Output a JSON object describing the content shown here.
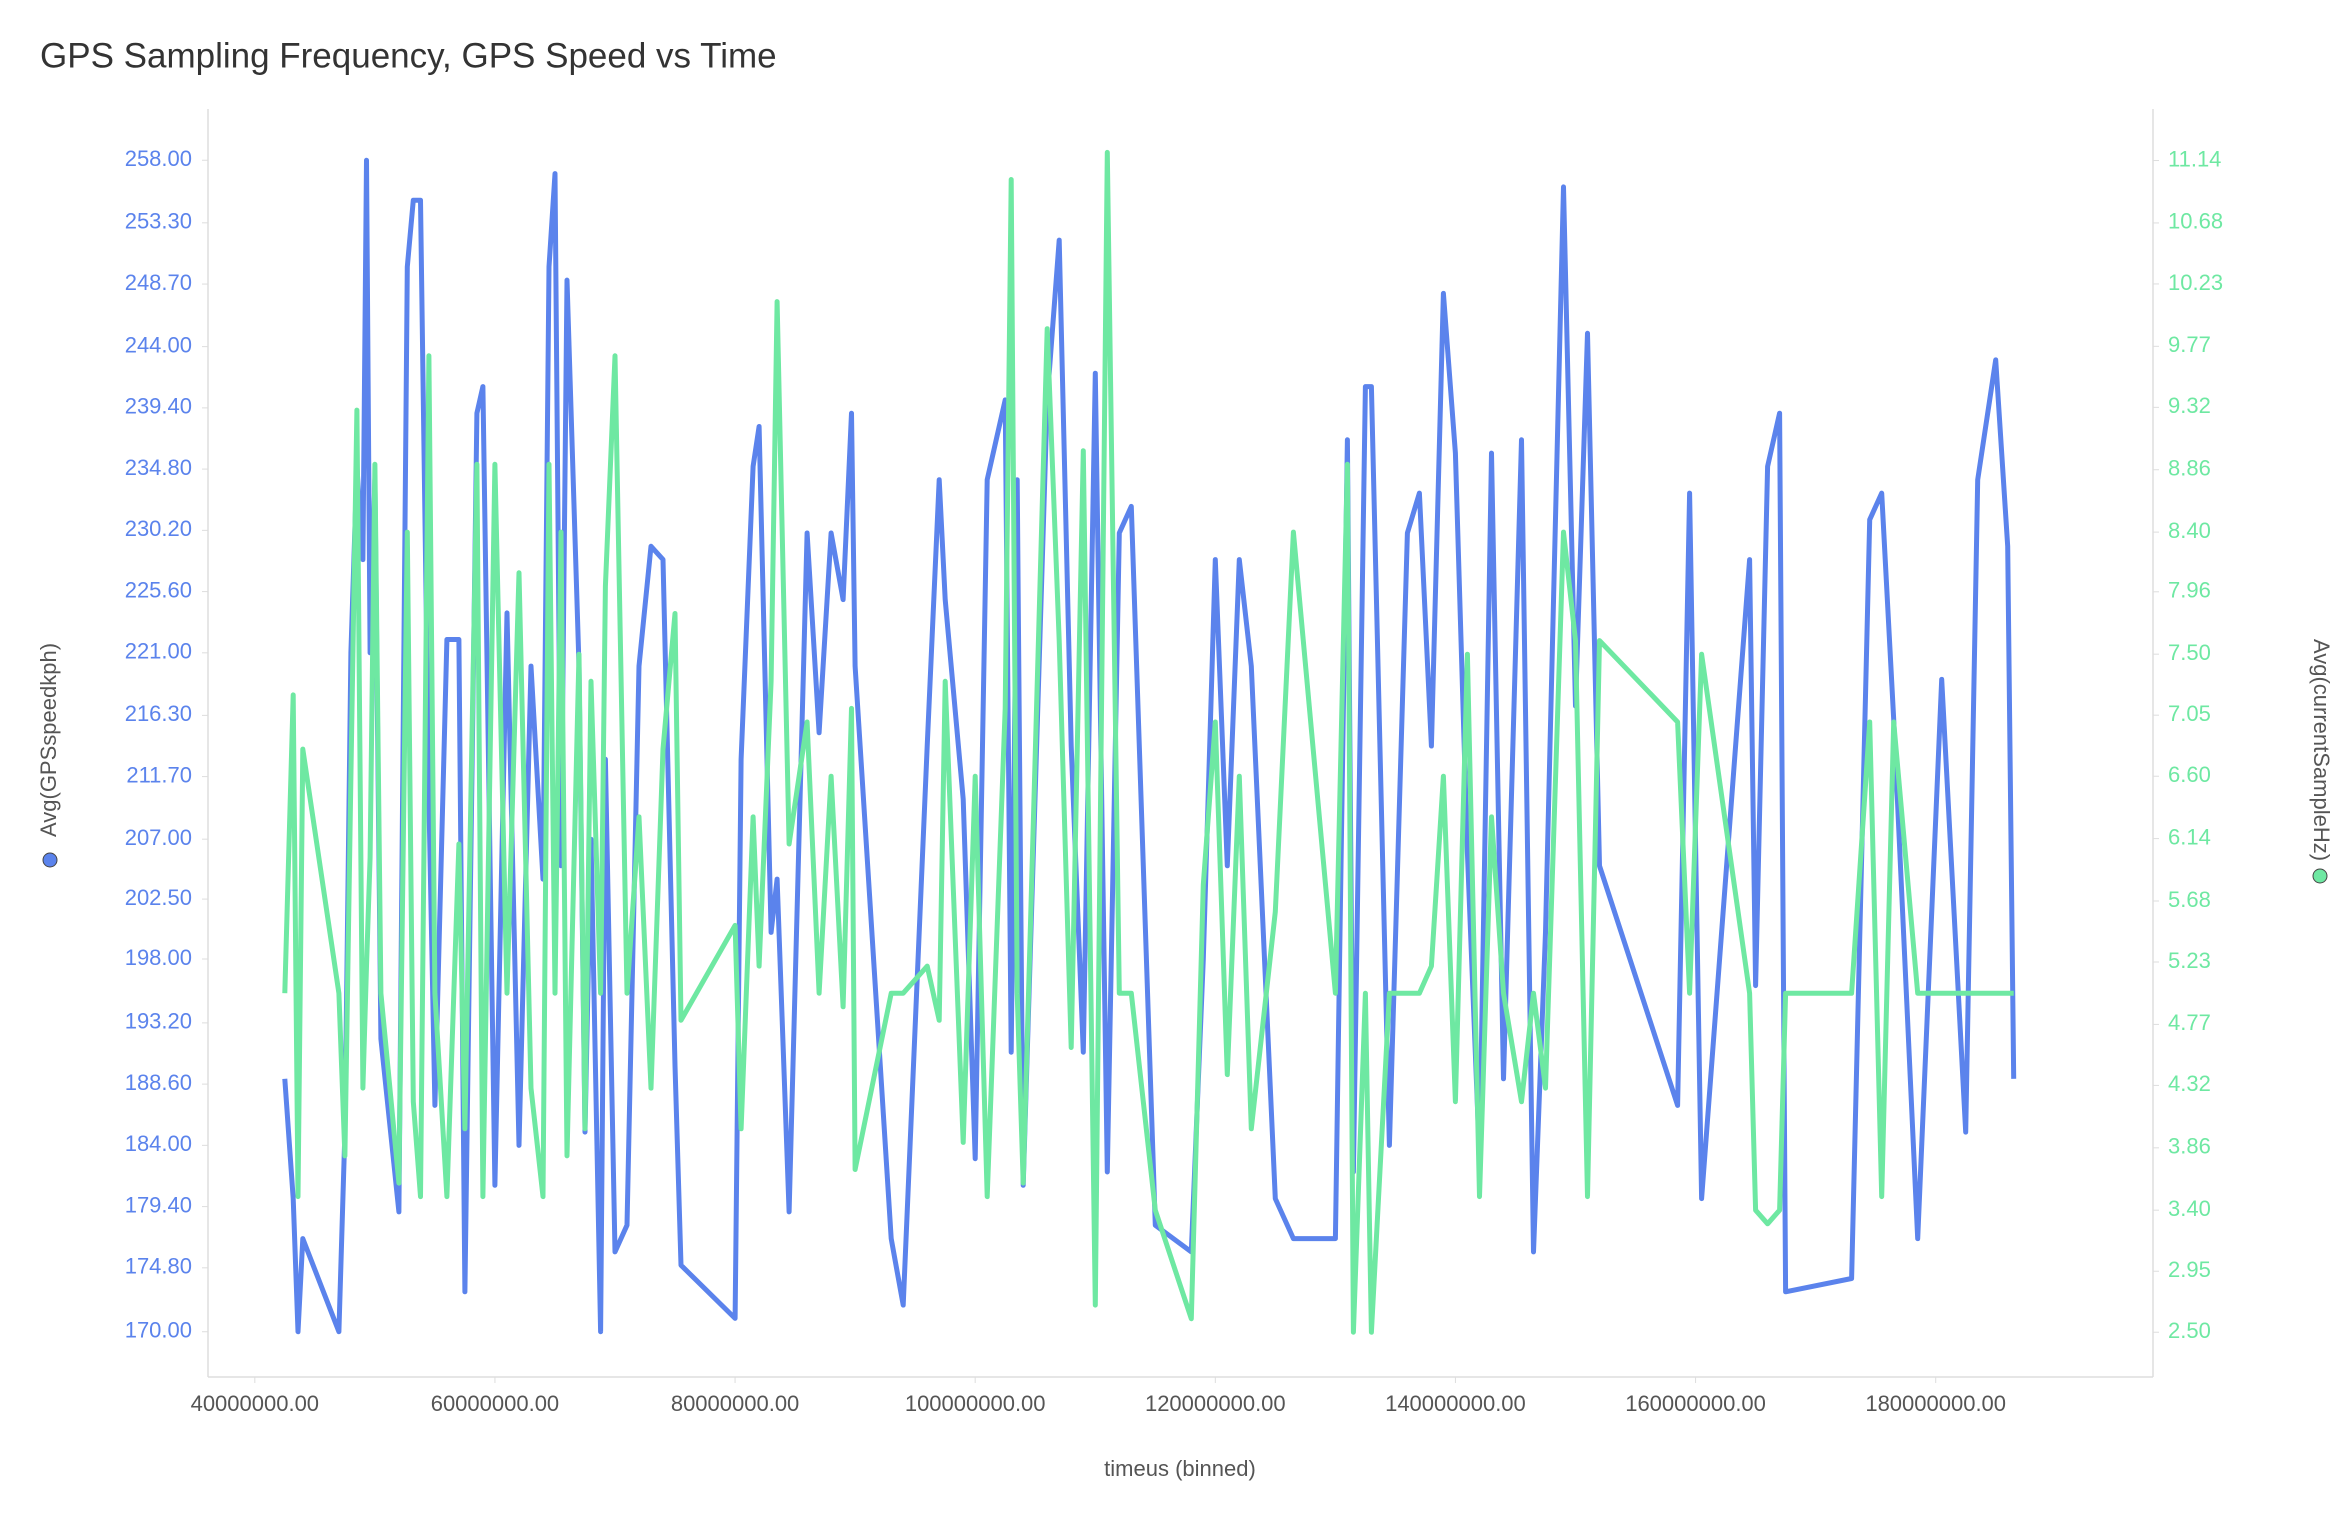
{
  "chart_data": {
    "type": "line",
    "title": "GPS Sampling Frequency, GPS Speed vs Time",
    "xlabel": "timeus (binned)",
    "x": [
      42500000,
      43200000,
      43600000,
      44000000,
      47000000,
      47500000,
      48000000,
      48500000,
      49000000,
      49300000,
      49600000,
      50000000,
      50500000,
      52000000,
      52700000,
      53200000,
      53800000,
      54500000,
      55000000,
      56000000,
      57000000,
      57500000,
      58500000,
      59000000,
      60000000,
      61000000,
      62000000,
      63000000,
      64000000,
      64500000,
      65000000,
      65500000,
      66000000,
      67000000,
      67500000,
      68000000,
      68800000,
      69200000,
      70000000,
      71000000,
      72000000,
      73000000,
      74000000,
      75000000,
      75500000,
      80000000,
      80500000,
      81500000,
      82000000,
      83000000,
      83500000,
      84500000,
      86000000,
      87000000,
      88000000,
      89000000,
      89700000,
      90000000,
      93000000,
      94000000,
      96000000,
      97000000,
      97500000,
      99000000,
      100000000,
      101000000,
      102500000,
      103000000,
      103500000,
      104000000,
      106000000,
      107000000,
      108000000,
      109000000,
      110000000,
      111000000,
      112000000,
      113000000,
      115000000,
      118000000,
      119000000,
      120000000,
      121000000,
      122000000,
      123000000,
      125000000,
      126500000,
      130000000,
      131000000,
      131500000,
      132500000,
      133000000,
      134500000,
      136000000,
      137000000,
      138000000,
      139000000,
      140000000,
      141000000,
      142000000,
      143000000,
      144000000,
      145500000,
      146500000,
      147500000,
      149000000,
      150000000,
      151000000,
      152000000,
      158500000,
      159500000,
      160500000,
      164500000,
      165000000,
      166000000,
      167000000,
      167500000,
      173000000,
      174500000,
      175500000,
      176500000,
      178500000,
      180500000,
      182500000,
      183500000,
      185000000,
      186000000,
      186500000
    ],
    "series": [
      {
        "name": "Avg(GPSspeedkph)",
        "color": "#5b83ec",
        "values": [
          189,
          180,
          170,
          177,
          170,
          185,
          221,
          235,
          228,
          258,
          221,
          234,
          192,
          179,
          250,
          255,
          255,
          210,
          187,
          222,
          222,
          173,
          239,
          241,
          181,
          224,
          184,
          220,
          204,
          250,
          257,
          205,
          249,
          220,
          185,
          207,
          170,
          213,
          176,
          178,
          220,
          229,
          228,
          190,
          175,
          171,
          213,
          235,
          238,
          200,
          204,
          179,
          230,
          215,
          230,
          225,
          239,
          220,
          177,
          172,
          214,
          234,
          225,
          210,
          183,
          234,
          240,
          191,
          234,
          181,
          240,
          252,
          214,
          191,
          242,
          182,
          230,
          232,
          178,
          176,
          198,
          228,
          205,
          228,
          220,
          180,
          177,
          177,
          237,
          182,
          241,
          241,
          184,
          230,
          233,
          214,
          248,
          236,
          206,
          183,
          236,
          189,
          237,
          176,
          200,
          256,
          217,
          245,
          205,
          187,
          233,
          180,
          228,
          196,
          235,
          239,
          173,
          174,
          231,
          233,
          216,
          177,
          219,
          185,
          234,
          243,
          229,
          189
        ]
      },
      {
        "name": "Avg(currentSampleHz)",
        "color": "#6ee8a2",
        "axis": "y2",
        "values": [
          5.0,
          7.2,
          3.5,
          6.8,
          5.0,
          3.8,
          6.6,
          9.3,
          4.3,
          5.2,
          6.0,
          8.9,
          5.0,
          3.6,
          8.4,
          4.2,
          3.5,
          9.7,
          5.0,
          3.5,
          6.1,
          4.0,
          8.9,
          3.5,
          8.9,
          5.0,
          8.1,
          4.3,
          3.5,
          8.9,
          5.0,
          8.4,
          3.8,
          7.5,
          4.0,
          7.3,
          5.0,
          8.0,
          9.7,
          5.0,
          6.3,
          4.3,
          6.8,
          7.8,
          4.8,
          5.5,
          4.0,
          6.3,
          5.2,
          7.3,
          10.1,
          6.1,
          7.0,
          5.0,
          6.6,
          4.9,
          7.1,
          3.7,
          5.0,
          5.0,
          5.2,
          4.8,
          7.3,
          3.9,
          6.6,
          3.5,
          7.1,
          11.0,
          5.0,
          3.6,
          9.9,
          7.6,
          4.6,
          9.0,
          2.7,
          11.2,
          5.0,
          5.0,
          3.4,
          2.6,
          5.8,
          7.0,
          4.4,
          6.6,
          4.0,
          5.6,
          8.4,
          5.0,
          8.9,
          2.5,
          5.0,
          2.5,
          5.0,
          5.0,
          5.0,
          5.2,
          6.6,
          4.2,
          7.5,
          3.5,
          6.3,
          5.0,
          4.2,
          5.0,
          4.3,
          8.4,
          7.6,
          3.5,
          7.6,
          7.0,
          5.0,
          7.5,
          5.0,
          3.4,
          3.3,
          3.4,
          5.0,
          5.0,
          7.0,
          3.5,
          7.0,
          5.0,
          5.0,
          5.0,
          5.0,
          5.0,
          5.0,
          5.0
        ]
      }
    ],
    "xlim": [
      36100000,
      198100000
    ],
    "xticks": [
      {
        "value": 40000000,
        "label": "40000000.00"
      },
      {
        "value": 60000000,
        "label": "60000000.00"
      },
      {
        "value": 80000000,
        "label": "80000000.00"
      },
      {
        "value": 100000000,
        "label": "100000000.00"
      },
      {
        "value": 120000000,
        "label": "120000000.00"
      },
      {
        "value": 140000000,
        "label": "140000000.00"
      },
      {
        "value": 160000000,
        "label": "160000000.00"
      },
      {
        "value": 180000000,
        "label": "180000000.00"
      }
    ],
    "ylim": [
      166.6,
      261.85
    ],
    "yticks": [
      {
        "value": 170,
        "label": "170.00"
      },
      {
        "value": 174.8,
        "label": "174.80"
      },
      {
        "value": 179.4,
        "label": "179.40"
      },
      {
        "value": 184,
        "label": "184.00"
      },
      {
        "value": 188.6,
        "label": "188.60"
      },
      {
        "value": 193.2,
        "label": "193.20"
      },
      {
        "value": 198,
        "label": "198.00"
      },
      {
        "value": 202.5,
        "label": "202.50"
      },
      {
        "value": 207,
        "label": "207.00"
      },
      {
        "value": 211.7,
        "label": "211.70"
      },
      {
        "value": 216.3,
        "label": "216.30"
      },
      {
        "value": 221,
        "label": "221.00"
      },
      {
        "value": 225.6,
        "label": "225.60"
      },
      {
        "value": 230.2,
        "label": "230.20"
      },
      {
        "value": 234.8,
        "label": "234.80"
      },
      {
        "value": 239.4,
        "label": "239.40"
      },
      {
        "value": 244,
        "label": "244.00"
      },
      {
        "value": 248.7,
        "label": "248.70"
      },
      {
        "value": 253.3,
        "label": "253.30"
      },
      {
        "value": 258,
        "label": "258.00"
      }
    ],
    "y2lim": [
      2.17,
      11.52
    ],
    "y2ticks": [
      {
        "value": 2.5,
        "label": "2.50"
      },
      {
        "value": 2.95,
        "label": "2.95"
      },
      {
        "value": 3.4,
        "label": "3.40"
      },
      {
        "value": 3.86,
        "label": "3.86"
      },
      {
        "value": 4.32,
        "label": "4.32"
      },
      {
        "value": 4.77,
        "label": "4.77"
      },
      {
        "value": 5.23,
        "label": "5.23"
      },
      {
        "value": 5.68,
        "label": "5.68"
      },
      {
        "value": 6.14,
        "label": "6.14"
      },
      {
        "value": 6.6,
        "label": "6.60"
      },
      {
        "value": 7.05,
        "label": "7.05"
      },
      {
        "value": 7.5,
        "label": "7.50"
      },
      {
        "value": 7.96,
        "label": "7.96"
      },
      {
        "value": 8.4,
        "label": "8.40"
      },
      {
        "value": 8.86,
        "label": "8.86"
      },
      {
        "value": 9.32,
        "label": "9.32"
      },
      {
        "value": 9.77,
        "label": "9.77"
      },
      {
        "value": 10.23,
        "label": "10.23"
      },
      {
        "value": 10.68,
        "label": "10.68"
      },
      {
        "value": 11.14,
        "label": "11.14"
      }
    ],
    "grid": false
  }
}
